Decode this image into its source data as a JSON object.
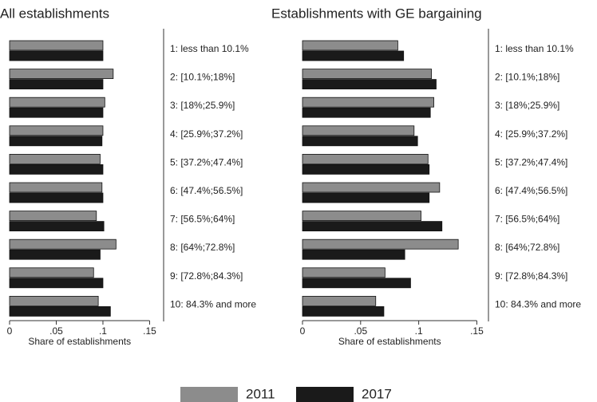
{
  "chart_data": [
    {
      "type": "barh",
      "title": "All establishments",
      "xlabel": "Share of establishments",
      "categories": [
        "1: less than 10.1%",
        "2: [10.1%;18%]",
        "3: [18%;25.9%]",
        "4: [25.9%;37.2%]",
        "5: [37.2%;47.4%]",
        "6: [47.4%;56.5%]",
        "7: [56.5%;64%]",
        "8: [64%;72.8%]",
        "9: [72.8%;84.3%]",
        "10: 84.3% and more"
      ],
      "series": [
        {
          "name": "2011",
          "color": "#8c8c8c",
          "values": [
            0.1,
            0.111,
            0.102,
            0.1,
            0.097,
            0.099,
            0.093,
            0.114,
            0.09,
            0.095
          ]
        },
        {
          "name": "2017",
          "color": "#1a1a1a",
          "values": [
            0.1,
            0.1,
            0.1,
            0.099,
            0.1,
            0.1,
            0.101,
            0.097,
            0.1,
            0.108
          ]
        }
      ],
      "xlim": [
        0,
        0.165
      ],
      "xticks": [
        0,
        {
          "value": 0.05,
          "label": ".05"
        },
        {
          "value": 0.1,
          "label": ".1"
        },
        {
          "value": 0.15,
          "label": ".15"
        }
      ]
    },
    {
      "type": "barh",
      "title": "Establishments with GE bargaining",
      "xlabel": "Share of establishments",
      "categories": [
        "1: less than 10.1%",
        "2: [10.1%;18%]",
        "3: [18%;25.9%]",
        "4: [25.9%;37.2%]",
        "5: [37.2%;47.4%]",
        "6: [47.4%;56.5%]",
        "7: [56.5%;64%]",
        "8: [64%;72.8%]",
        "9: [72.8%;84.3%]",
        "10: 84.3% and more"
      ],
      "series": [
        {
          "color": "#8c8c8c",
          "values": [
            0.082,
            0.111,
            0.113,
            0.096,
            0.108,
            0.118,
            0.102,
            0.134,
            0.071,
            0.063
          ]
        },
        {
          "color": "#1a1a1a",
          "values": [
            0.087,
            0.115,
            0.11,
            0.099,
            0.109,
            0.109,
            0.12,
            0.088,
            0.093,
            0.07
          ]
        }
      ],
      "xlim": [
        0,
        0.16
      ],
      "xticks": [
        0,
        {
          "value": 0.05,
          "label": ".05"
        },
        {
          "value": 0.1,
          "label": ".1"
        },
        {
          "value": 0.15,
          "label": ".15"
        }
      ]
    }
  ]
}
